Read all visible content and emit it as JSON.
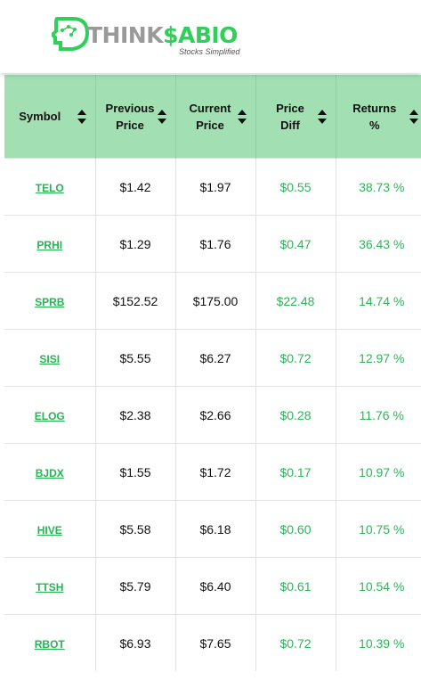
{
  "brand": {
    "think": "THINK",
    "sabio": "$ABIO",
    "tagline": "Stocks Simplified"
  },
  "columns": [
    {
      "label": "Symbol"
    },
    {
      "label": "Previous Price"
    },
    {
      "label": "Current Price"
    },
    {
      "label": "Price Diff"
    },
    {
      "label": "Returns %"
    }
  ],
  "rows": [
    {
      "symbol": "TELO",
      "previous": "$1.42",
      "current": "$1.97",
      "diff": "$0.55",
      "returns": "38.73 %"
    },
    {
      "symbol": "PRHI",
      "previous": "$1.29",
      "current": "$1.76",
      "diff": "$0.47",
      "returns": "36.43 %"
    },
    {
      "symbol": "SPRB",
      "previous": "$152.52",
      "current": "$175.00",
      "diff": "$22.48",
      "returns": "14.74 %"
    },
    {
      "symbol": "SISI",
      "previous": "$5.55",
      "current": "$6.27",
      "diff": "$0.72",
      "returns": "12.97 %"
    },
    {
      "symbol": "ELOG",
      "previous": "$2.38",
      "current": "$2.66",
      "diff": "$0.28",
      "returns": "11.76 %"
    },
    {
      "symbol": "BJDX",
      "previous": "$1.55",
      "current": "$1.72",
      "diff": "$0.17",
      "returns": "10.97 %"
    },
    {
      "symbol": "HIVE",
      "previous": "$5.58",
      "current": "$6.18",
      "diff": "$0.60",
      "returns": "10.75 %"
    },
    {
      "symbol": "TTSH",
      "previous": "$5.79",
      "current": "$6.40",
      "diff": "$0.61",
      "returns": "10.54 %"
    },
    {
      "symbol": "RBOT",
      "previous": "$6.93",
      "current": "$7.65",
      "diff": "$0.72",
      "returns": "10.39 %"
    }
  ],
  "colors": {
    "header_bg": "#a2e0b4",
    "accent_green": "#2fb35a",
    "brand_green": "#2fcf5a"
  }
}
